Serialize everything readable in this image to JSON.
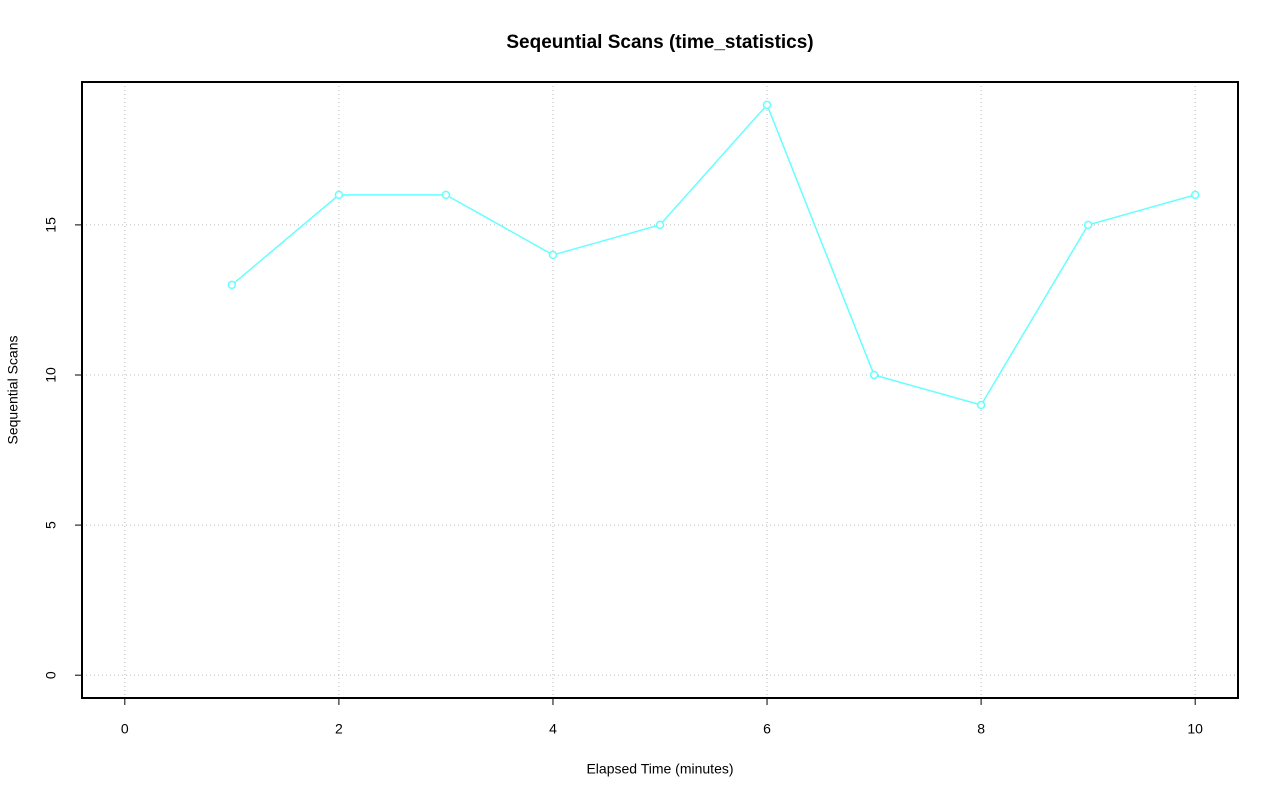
{
  "chart_data": {
    "type": "line",
    "title": "Seqeuntial Scans (time_statistics)",
    "x_label": "Elapsed Time (minutes)",
    "y_label": "Sequential Scans",
    "x": [
      1,
      2,
      3,
      4,
      5,
      6,
      7,
      8,
      9,
      10
    ],
    "series": [
      {
        "name": "Sequential Scans",
        "color": "#66ffff",
        "values": [
          13,
          16,
          16,
          14,
          15,
          19,
          10,
          9,
          15,
          16
        ]
      }
    ],
    "xlim": [
      -0.4,
      10.4
    ],
    "xticks": [
      0,
      2,
      4,
      6,
      8,
      10
    ],
    "ylim": [
      -0.76,
      19.76
    ],
    "yticks": [
      0,
      5,
      10,
      15
    ],
    "grid": true
  }
}
